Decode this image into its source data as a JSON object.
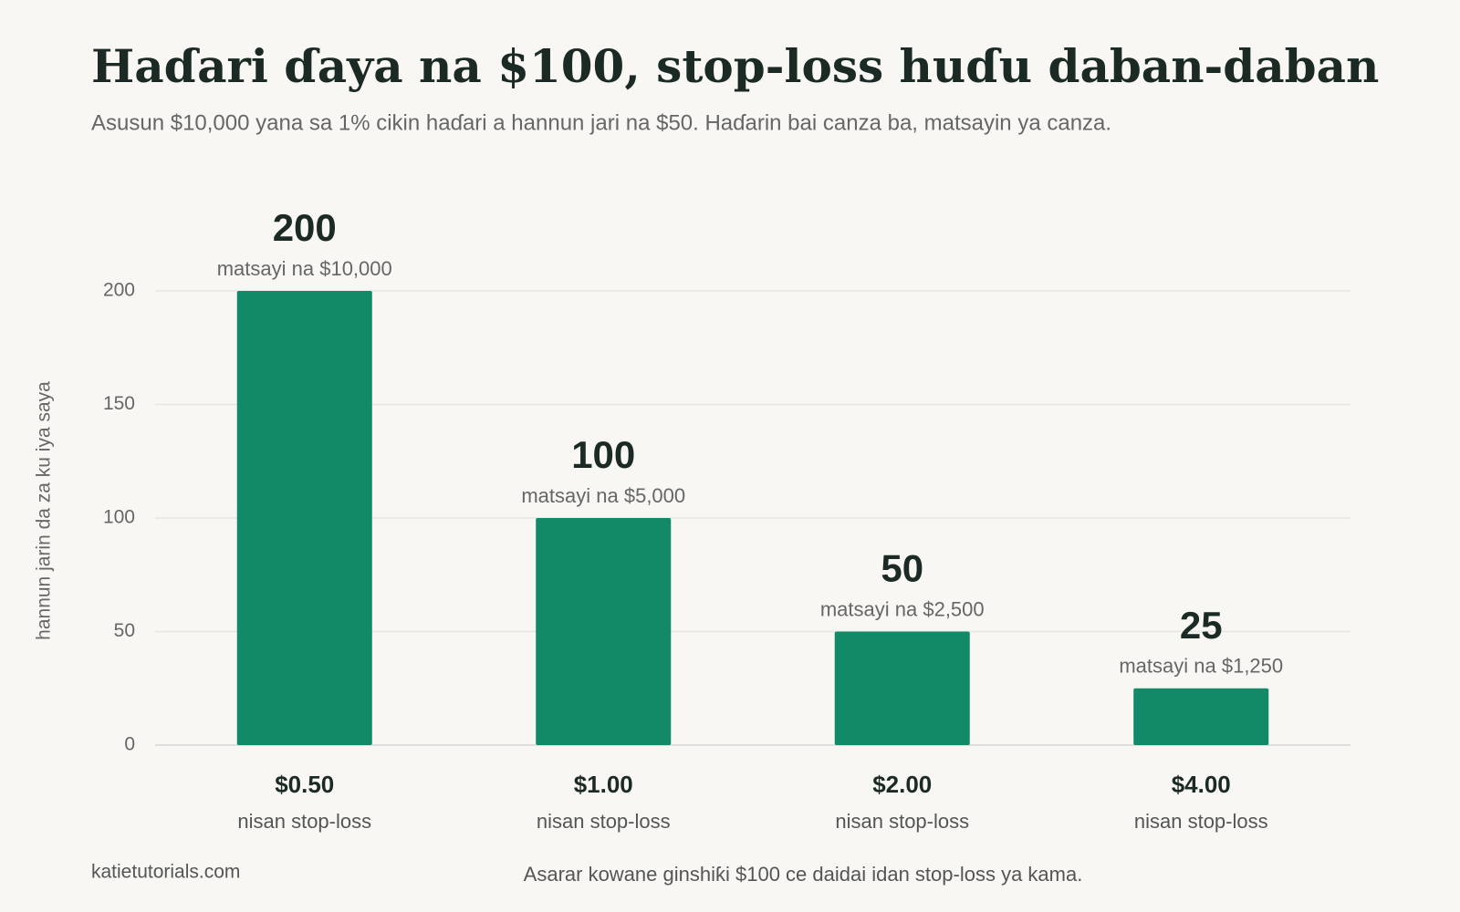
{
  "chart_data": {
    "type": "bar",
    "title": "Haɗari ɗaya na $100, stop-loss huɗu daban-daban",
    "subtitle": "Asusun $10,000 yana sa 1% cikin haɗari a hannun jari na $50. Haɗarin bai canza ba, matsayin ya canza.",
    "y_label": "hannun jarin da za ku iya saya",
    "x_label": "Asarar kowane ginshiƙi $100 ce daidai idan stop-loss ya kama.",
    "source": "katietutorials.com",
    "categories": [
      "$0.50",
      "$1.00",
      "$2.00",
      "$4.00"
    ],
    "category_sublabel": "nisan stop-loss",
    "values": [
      200,
      100,
      50,
      25
    ],
    "annotations": [
      "matsayi na $10,000",
      "matsayi na $5,000",
      "matsayi na $2,500",
      "matsayi na $1,250"
    ],
    "color": "#128a67",
    "ylim": [
      0,
      200
    ],
    "yticks": [
      0,
      50,
      100,
      150,
      200
    ],
    "grid": true
  }
}
